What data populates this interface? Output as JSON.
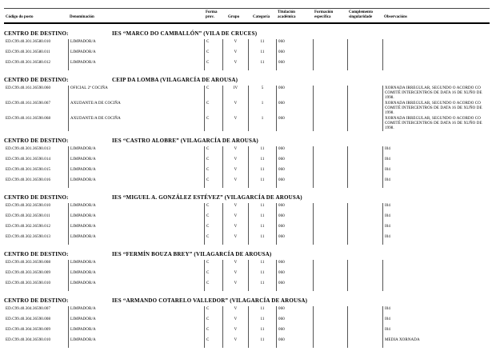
{
  "header": {
    "codigo": "Código do posto",
    "denominacion": "Denominación",
    "forma_l1": "Forma",
    "forma_l2": "prov.",
    "grupo": "Grupo",
    "categoria": "Categoría",
    "titulacion_l1": "Titulación",
    "titulacion_l2": "académica",
    "formacion_l1": "Formación",
    "formacion_l2": "específica",
    "complemento_l1": "Complemento",
    "complemento_l2": "singularidade",
    "observacions": "Observacións"
  },
  "colors": {
    "text": "#000000",
    "rules": "#000000",
    "background": "#ffffff"
  },
  "blocks": [
    {
      "label": "CENTRO DE DESTINO:",
      "centro": "IES “MARCO DO CAMBALLÓN” (VILA DE CRUCES)",
      "rows": [
        {
          "codigo": "ED.C99.40.301.36580.010",
          "denominacion": "LIMPADOR/A",
          "forma": "C",
          "grupo": "V",
          "categoria": "11",
          "titulacion": "060",
          "formacion": "",
          "complemento": "",
          "observacions": ""
        },
        {
          "codigo": "ED.C99.40.301.36580.011",
          "denominacion": "LIMPADOR/A",
          "forma": "C",
          "grupo": "V",
          "categoria": "11",
          "titulacion": "060",
          "formacion": "",
          "complemento": "",
          "observacions": ""
        },
        {
          "codigo": "ED.C99.40.301.36580.012",
          "denominacion": "LIMPADOR/A",
          "forma": "C",
          "grupo": "V",
          "categoria": "11",
          "titulacion": "060",
          "formacion": "",
          "complemento": "",
          "observacions": ""
        }
      ]
    },
    {
      "label": "CENTRO DE DESTINO:",
      "centro": "CEIP DA LOMBA (VILAGARCÍA DE AROUSA)",
      "rows": [
        {
          "codigo": "ED.C99.40.161.36590.060",
          "denominacion": "OFICIAL 2ª COCIÑA",
          "forma": "C",
          "grupo": "IV",
          "categoria": "5",
          "titulacion": "060",
          "formacion": "",
          "complemento": "",
          "observacions": "XORNADA IRREGULAR, SEGUNDO O ACORDO CO COMITÉ INTERCENTROS DE DATA 16 DE XUÑO DE 1998."
        },
        {
          "codigo": "ED.C99.40.161.36590.067",
          "denominacion": "AXUDANTE/A DE COCIÑA",
          "forma": "C",
          "grupo": "V",
          "categoria": "1",
          "titulacion": "060",
          "formacion": "",
          "complemento": "",
          "observacions": "XORNADA IRREGULAR, SEGUNDO O ACORDO CO COMITÉ INTERCENTROS DE DATA 16 DE XUÑO DE 1998."
        },
        {
          "codigo": "ED.C99.40.161.36590.068",
          "denominacion": "AXUDANTE/A DE COCIÑA",
          "forma": "C",
          "grupo": "V",
          "categoria": "1",
          "titulacion": "060",
          "formacion": "",
          "complemento": "",
          "observacions": "XORNADA IRREGULAR, SEGUNDO O ACORDO CO COMITÉ INTERCENTROS DE DATA 16 DE XUÑO DE 1998."
        }
      ]
    },
    {
      "label": "CENTRO DE DESTINO:",
      "centro": "IES “CASTRO ALOBRE” (VILAGARCÍA DE AROUSA)",
      "rows": [
        {
          "codigo": "ED.C99.40.301.36590.013",
          "denominacion": "LIMPADOR/A",
          "forma": "C",
          "grupo": "V",
          "categoria": "11",
          "titulacion": "060",
          "formacion": "",
          "complemento": "",
          "observacions": "I04"
        },
        {
          "codigo": "ED.C99.40.301.36590.014",
          "denominacion": "LIMPADOR/A",
          "forma": "C",
          "grupo": "V",
          "categoria": "11",
          "titulacion": "060",
          "formacion": "",
          "complemento": "",
          "observacions": "I04"
        },
        {
          "codigo": "ED.C99.40.301.36590.015",
          "denominacion": "LIMPADOR/A",
          "forma": "C",
          "grupo": "V",
          "categoria": "11",
          "titulacion": "060",
          "formacion": "",
          "complemento": "",
          "observacions": "I04"
        },
        {
          "codigo": "ED.C99.40.301.36590.016",
          "denominacion": "LIMPADOR/A",
          "forma": "C",
          "grupo": "V",
          "categoria": "11",
          "titulacion": "060",
          "formacion": "",
          "complemento": "",
          "observacions": "I04"
        }
      ]
    },
    {
      "label": "CENTRO DE DESTINO:",
      "centro": "IES “MIGUEL A. GONZÁLEZ ESTÉVEZ” (VILAGARCÍA DE AROUSA)",
      "rows": [
        {
          "codigo": "ED.C99.40.302.36590.010",
          "denominacion": "LIMPADOR/A",
          "forma": "C",
          "grupo": "V",
          "categoria": "11",
          "titulacion": "060",
          "formacion": "",
          "complemento": "",
          "observacions": "I04"
        },
        {
          "codigo": "ED.C99.40.302.36590.011",
          "denominacion": "LIMPADOR/A",
          "forma": "C",
          "grupo": "V",
          "categoria": "11",
          "titulacion": "060",
          "formacion": "",
          "complemento": "",
          "observacions": "I04"
        },
        {
          "codigo": "ED.C99.40.302.36590.012",
          "denominacion": "LIMPADOR/A",
          "forma": "C",
          "grupo": "V",
          "categoria": "11",
          "titulacion": "060",
          "formacion": "",
          "complemento": "",
          "observacions": "I04"
        },
        {
          "codigo": "ED.C99.40.302.36590.013",
          "denominacion": "LIMPADOR/A",
          "forma": "C",
          "grupo": "V",
          "categoria": "11",
          "titulacion": "060",
          "formacion": "",
          "complemento": "",
          "observacions": "I04"
        }
      ]
    },
    {
      "label": "CENTRO DE DESTINO:",
      "centro": "IES “FERMÍN BOUZA BREY” (VILAGARCÍA DE AROUSA)",
      "rows": [
        {
          "codigo": "ED.C99.40.303.36590.008",
          "denominacion": "LIMPADOR/A",
          "forma": "C",
          "grupo": "V",
          "categoria": "11",
          "titulacion": "060",
          "formacion": "",
          "complemento": "",
          "observacions": ""
        },
        {
          "codigo": "ED.C99.40.303.36590.009",
          "denominacion": "LIMPADOR/A",
          "forma": "C",
          "grupo": "V",
          "categoria": "11",
          "titulacion": "060",
          "formacion": "",
          "complemento": "",
          "observacions": ""
        },
        {
          "codigo": "ED.C99.40.303.36590.010",
          "denominacion": "LIMPADOR/A",
          "forma": "C",
          "grupo": "V",
          "categoria": "11",
          "titulacion": "060",
          "formacion": "",
          "complemento": "",
          "observacions": ""
        }
      ]
    },
    {
      "label": "CENTRO DE DESTINO:",
      "centro": "IES “ARMANDO COTARELO VALLEDOR” (VILAGARCÍA DE AROUSA)",
      "rows": [
        {
          "codigo": "ED.C99.40.304.36590.007",
          "denominacion": "LIMPADOR/A",
          "forma": "C",
          "grupo": "V",
          "categoria": "11",
          "titulacion": "060",
          "formacion": "",
          "complemento": "",
          "observacions": "I04"
        },
        {
          "codigo": "ED.C99.40.304.36590.008",
          "denominacion": "LIMPADOR/A",
          "forma": "C",
          "grupo": "V",
          "categoria": "11",
          "titulacion": "060",
          "formacion": "",
          "complemento": "",
          "observacions": "I04"
        },
        {
          "codigo": "ED.C99.40.304.36590.009",
          "denominacion": "LIMPADOR/A",
          "forma": "C",
          "grupo": "V",
          "categoria": "11",
          "titulacion": "060",
          "formacion": "",
          "complemento": "",
          "observacions": "I04"
        },
        {
          "codigo": "ED.C99.40.304.36590.010",
          "denominacion": "LIMPADOR/A",
          "forma": "C",
          "grupo": "V",
          "categoria": "11",
          "titulacion": "060",
          "formacion": "",
          "complemento": "",
          "observacions": "MEDIA XORNADA"
        }
      ]
    }
  ]
}
